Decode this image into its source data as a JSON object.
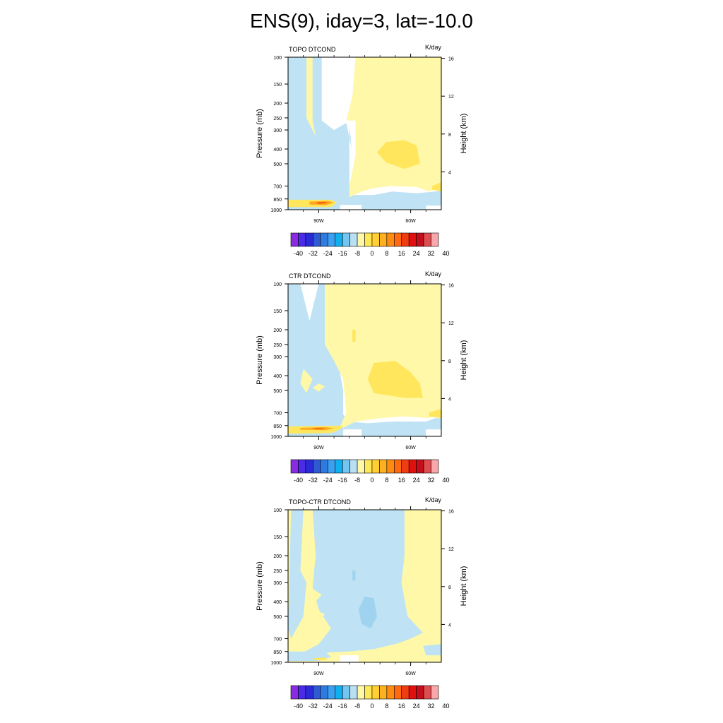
{
  "title": "ENS(9), iday=3, lat=-10.0",
  "palette": [
    "#8a2be2",
    "#4b2be8",
    "#2a2ad8",
    "#2f5ad0",
    "#2f7ae0",
    "#3ca0f0",
    "#10b0f0",
    "#72c6f0",
    "#b8e0f2",
    "#fff8a8",
    "#ffe858",
    "#ffd030",
    "#ffb020",
    "#ff8c10",
    "#ff6a10",
    "#f03c10",
    "#e01010",
    "#c40e1a",
    "#e04c50",
    "#f8a8aa"
  ],
  "colors": {
    "light_blue": "#bfe3f4",
    "mid_blue": "#9fd3ef",
    "light_yellow": "#fff8a8",
    "yellow": "#ffe65c",
    "orange": "#ffab1f",
    "red_orange": "#f25a16",
    "white": "#ffffff"
  },
  "colorbar_labels": [
    "-40",
    "-32",
    "-24",
    "-16",
    "-8",
    "0",
    "8",
    "16",
    "24",
    "32",
    "40"
  ],
  "chart_data": [
    {
      "type": "contour",
      "subtitle": "TOPO DTCOND",
      "units": "K/day",
      "xlabel": "",
      "ylabel": "Pressure (mb)",
      "ylabel_right": "Height (km)",
      "x_ticks": [
        "90W",
        "60W"
      ],
      "y_ticks": [
        "100",
        "150",
        "200",
        "250",
        "300",
        "400",
        "500",
        "700",
        "850",
        "1000"
      ],
      "y_ticks_right": [
        "16",
        "12",
        "8",
        "4"
      ],
      "levels": [
        -40,
        -36,
        -32,
        -28,
        -24,
        -20,
        -16,
        -12,
        -8,
        -4,
        0,
        4,
        8,
        12,
        16,
        20,
        24,
        28,
        32,
        36,
        40
      ],
      "features": [
        {
          "value": -4,
          "region": "western side 98W-88W, 100-850 mb"
        },
        {
          "value": 4,
          "region": "large region 78W-50W, 100-850 mb"
        },
        {
          "value": 8,
          "region": "centered ~64W, 350-550 mb"
        },
        {
          "value": 20,
          "region": "near 90W, ~900 mb"
        }
      ]
    },
    {
      "type": "contour",
      "subtitle": "CTR DTCOND",
      "units": "K/day",
      "xlabel": "",
      "ylabel": "Pressure (mb)",
      "ylabel_right": "Height (km)",
      "x_ticks": [
        "90W",
        "60W"
      ],
      "y_ticks": [
        "100",
        "150",
        "200",
        "250",
        "300",
        "400",
        "500",
        "700",
        "850",
        "1000"
      ],
      "y_ticks_right": [
        "16",
        "12",
        "8",
        "4"
      ],
      "levels": [
        -40,
        -36,
        -32,
        -28,
        -24,
        -20,
        -16,
        -12,
        -8,
        -4,
        0,
        4,
        8,
        12,
        16,
        20,
        24,
        28,
        32,
        36,
        40
      ],
      "features": [
        {
          "value": -4,
          "region": "western side 98W-82W, 100-850 mb"
        },
        {
          "value": 4,
          "region": "large region 82W-50W, 100-850 mb"
        },
        {
          "value": 8,
          "region": "centered ~66W, 350-600 mb"
        },
        {
          "value": 16,
          "region": "near 88W, ~900 mb"
        }
      ]
    },
    {
      "type": "contour",
      "subtitle": "TOPO-CTR DTCOND",
      "units": "K/day",
      "xlabel": "",
      "ylabel": "Pressure (mb)",
      "ylabel_right": "Height (km)",
      "x_ticks": [
        "90W",
        "60W"
      ],
      "y_ticks": [
        "100",
        "150",
        "200",
        "250",
        "300",
        "400",
        "500",
        "700",
        "850",
        "1000"
      ],
      "y_ticks_right": [
        "16",
        "12",
        "8",
        "4"
      ],
      "levels": [
        -40,
        -36,
        -32,
        -28,
        -24,
        -20,
        -16,
        -12,
        -8,
        -4,
        0,
        4,
        8,
        12,
        16,
        20,
        24,
        28,
        32,
        36,
        40
      ],
      "features": [
        {
          "value": -4,
          "region": "central band 88W-62W, 100-1000 mb"
        },
        {
          "value": -8,
          "region": "centered ~73W, 400-600 mb"
        },
        {
          "value": 4,
          "region": "eastern side 62W-50W and western patches"
        }
      ]
    }
  ]
}
